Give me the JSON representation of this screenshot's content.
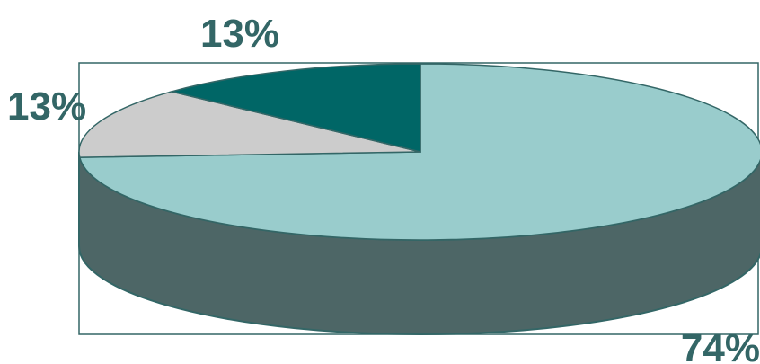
{
  "chart_data": {
    "type": "pie",
    "style": "3d",
    "slices": [
      {
        "label": "74%",
        "value": 74,
        "color": "#99cccc"
      },
      {
        "label": "13%",
        "value": 13,
        "color": "#cccccc"
      },
      {
        "label": "13%",
        "value": 13,
        "color": "#006666"
      }
    ],
    "side_color": "#4d6666",
    "edge_color": "#336666",
    "label_color": "#336666",
    "frame_color": "#336666"
  }
}
